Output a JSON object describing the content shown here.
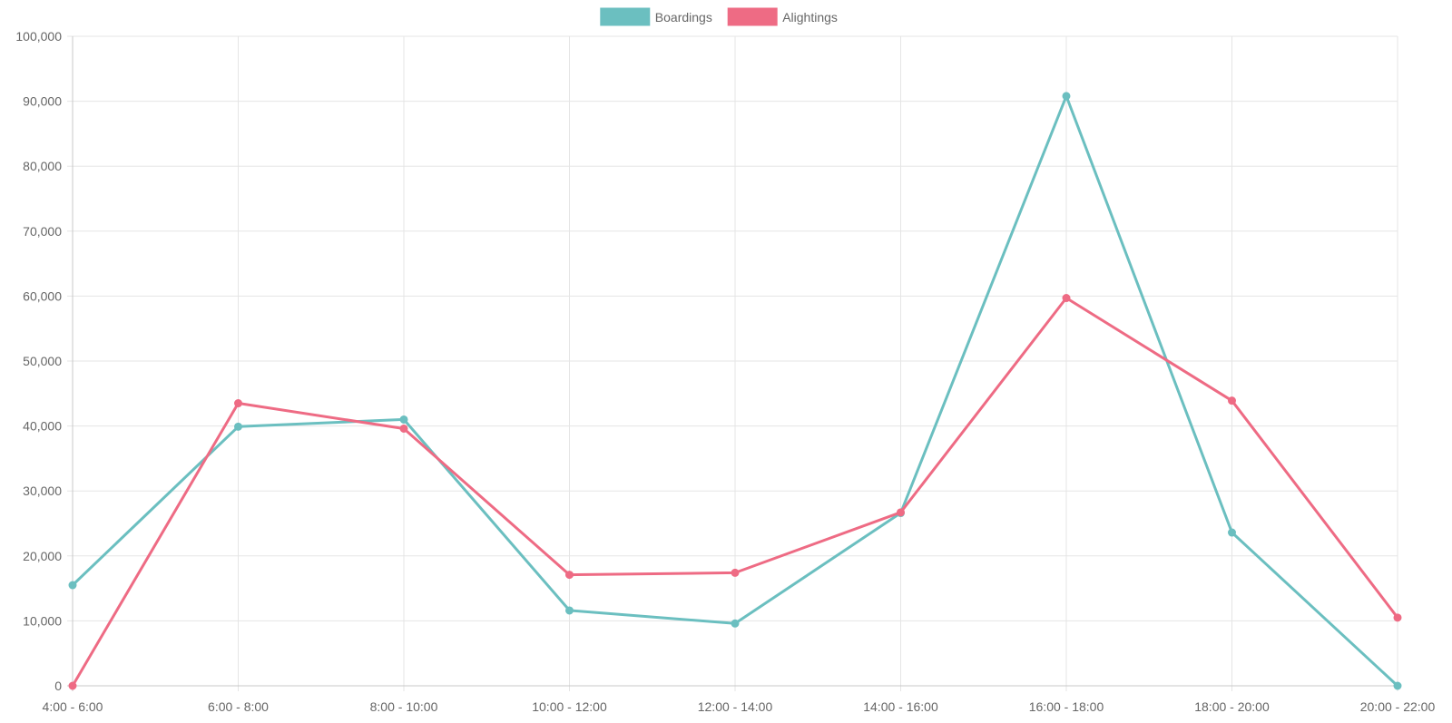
{
  "chart_data": {
    "type": "line",
    "categories": [
      "4:00 - 6:00",
      "6:00 - 8:00",
      "8:00 - 10:00",
      "10:00 - 12:00",
      "12:00 - 14:00",
      "14:00 - 16:00",
      "16:00 - 18:00",
      "18:00 - 20:00",
      "20:00 - 22:00"
    ],
    "series": [
      {
        "name": "Boardings",
        "color": "#6bbfc0",
        "values": [
          15500,
          39900,
          41000,
          11600,
          9600,
          26600,
          90800,
          23600,
          0
        ]
      },
      {
        "name": "Alightings",
        "color": "#ee6b84",
        "values": [
          0,
          43500,
          39600,
          17100,
          17400,
          26700,
          59700,
          43900,
          10500
        ]
      }
    ],
    "ylim": [
      0,
      100000
    ],
    "yticks": [
      "0",
      "10,000",
      "20,000",
      "30,000",
      "40,000",
      "50,000",
      "60,000",
      "70,000",
      "80,000",
      "90,000",
      "100,000"
    ],
    "grid": true,
    "legend_position": "top-center"
  }
}
